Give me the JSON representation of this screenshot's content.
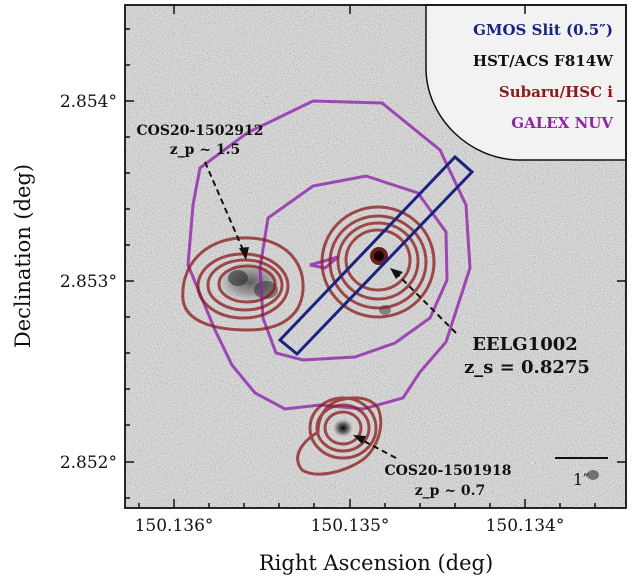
{
  "axes": {
    "xlabel": "Right Ascension (deg)",
    "ylabel": "Declination (deg)",
    "xticks": [
      "150.136°",
      "150.135°",
      "150.134°"
    ],
    "yticks": [
      "2.854°",
      "2.853°",
      "2.852°"
    ]
  },
  "legend": {
    "items": [
      {
        "label": "GMOS Slit (0.5″)",
        "color": "#1a237e"
      },
      {
        "label": "HST/ACS F814W",
        "color": "#111111"
      },
      {
        "label": "Subaru/HSC i",
        "color": "#8b1a1a"
      },
      {
        "label": "GALEX NUV",
        "color": "#8e24aa"
      }
    ]
  },
  "annotations": {
    "obj1_name": "COS20-1502912",
    "obj1_z": "z_p ~ 1.5",
    "obj2_name": "EELG1002",
    "obj2_z": "z_s = 0.8275",
    "obj3_name": "COS20-1501918",
    "obj3_z": "z_p ~ 0.7"
  },
  "scalebar": {
    "label": "1″"
  },
  "colors": {
    "slit": "#1a237e",
    "hsc": "#8b1a1a",
    "galex": "#8e24aa"
  }
}
